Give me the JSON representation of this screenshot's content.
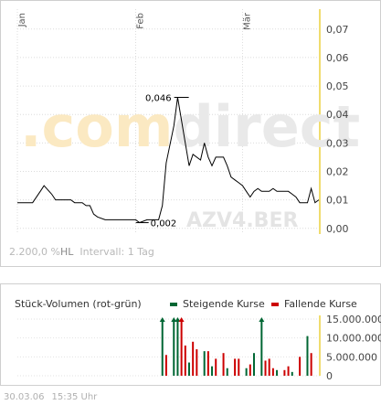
{
  "watermark": {
    "text_light": ".com",
    "text_dark": "direct",
    "symbol": "AZV4.BER"
  },
  "info": {
    "range": "2.200,0",
    "unit": "%",
    "hl": "HL",
    "interval": "Intervall: 1 Tag"
  },
  "footer": {
    "date": "30.03.06",
    "time": "15:35 Uhr"
  },
  "colors": {
    "up": "#006633",
    "down": "#cc0000",
    "highlight": "#f0dc6e",
    "line": "#000000"
  },
  "chart_data": [
    {
      "type": "line",
      "title": "",
      "month_labels": [
        {
          "label": "Jan",
          "day": 1
        },
        {
          "label": "Feb",
          "day": 32
        },
        {
          "label": "Mär",
          "day": 60
        }
      ],
      "ylim": [
        -0.002,
        0.077
      ],
      "yticks": [
        "0,00",
        "0,01",
        "0,02",
        "0,03",
        "0,04",
        "0,05",
        "0,06",
        "0,07"
      ],
      "yticks_values": [
        0,
        0.01,
        0.02,
        0.03,
        0.04,
        0.05,
        0.06,
        0.07
      ],
      "annotations": [
        {
          "label": "0,046",
          "day": 44,
          "value": 0.046
        },
        {
          "label": "0,002",
          "day": 33,
          "value": 0.002
        }
      ],
      "series": [
        {
          "values": [
            [
              1,
              0.009
            ],
            [
              3,
              0.009
            ],
            [
              5,
              0.009
            ],
            [
              7,
              0.013
            ],
            [
              8,
              0.015
            ],
            [
              10,
              0.012
            ],
            [
              11,
              0.01
            ],
            [
              13,
              0.01
            ],
            [
              15,
              0.01
            ],
            [
              16,
              0.009
            ],
            [
              18,
              0.009
            ],
            [
              19,
              0.008
            ],
            [
              20,
              0.008
            ],
            [
              21,
              0.005
            ],
            [
              22,
              0.004
            ],
            [
              24,
              0.003
            ],
            [
              26,
              0.003
            ],
            [
              28,
              0.003
            ],
            [
              30,
              0.003
            ],
            [
              32,
              0.003
            ],
            [
              33,
              0.002
            ],
            [
              35,
              0.003
            ],
            [
              37,
              0.003
            ],
            [
              38,
              0.003
            ],
            [
              39,
              0.008
            ],
            [
              40,
              0.023
            ],
            [
              42,
              0.036
            ],
            [
              43,
              0.046
            ],
            [
              44,
              0.038
            ],
            [
              45,
              0.03
            ],
            [
              46,
              0.022
            ],
            [
              47,
              0.026
            ],
            [
              49,
              0.024
            ],
            [
              50,
              0.03
            ],
            [
              51,
              0.025
            ],
            [
              52,
              0.022
            ],
            [
              53,
              0.025
            ],
            [
              55,
              0.025
            ],
            [
              56,
              0.022
            ],
            [
              57,
              0.018
            ],
            [
              58,
              0.017
            ],
            [
              59,
              0.016
            ],
            [
              60,
              0.015
            ],
            [
              61,
              0.013
            ],
            [
              62,
              0.011
            ],
            [
              63,
              0.013
            ],
            [
              64,
              0.014
            ],
            [
              65,
              0.013
            ],
            [
              67,
              0.013
            ],
            [
              68,
              0.014
            ],
            [
              69,
              0.013
            ],
            [
              71,
              0.013
            ],
            [
              72,
              0.013
            ],
            [
              73,
              0.012
            ],
            [
              74,
              0.011
            ],
            [
              75,
              0.009
            ],
            [
              77,
              0.009
            ],
            [
              78,
              0.014
            ],
            [
              79,
              0.009
            ],
            [
              80,
              0.01
            ]
          ]
        }
      ]
    },
    {
      "type": "bar",
      "title": "Stück-Volumen (rot-grün)",
      "legend": [
        "Steigende Kurse",
        "Fallende Kurse"
      ],
      "ylim": [
        0,
        15000000
      ],
      "yticks": [
        "0",
        "5.000.000",
        "10.000.000",
        "15.000.000"
      ],
      "yticks_values": [
        0,
        5000000,
        10000000,
        15000000
      ],
      "bars": [
        {
          "day": 39,
          "value": 15000000,
          "dir": "up"
        },
        {
          "day": 40,
          "value": 5500000,
          "dir": "down"
        },
        {
          "day": 42,
          "value": 15000000,
          "dir": "up"
        },
        {
          "day": 43,
          "value": 15000000,
          "dir": "up"
        },
        {
          "day": 44,
          "value": 15000000,
          "dir": "down"
        },
        {
          "day": 45,
          "value": 8000000,
          "dir": "down"
        },
        {
          "day": 46,
          "value": 3500000,
          "dir": "up"
        },
        {
          "day": 47,
          "value": 9000000,
          "dir": "down"
        },
        {
          "day": 48,
          "value": 7000000,
          "dir": "down"
        },
        {
          "day": 50,
          "value": 6500000,
          "dir": "up"
        },
        {
          "day": 51,
          "value": 6500000,
          "dir": "down"
        },
        {
          "day": 52,
          "value": 2500000,
          "dir": "up"
        },
        {
          "day": 53,
          "value": 4500000,
          "dir": "down"
        },
        {
          "day": 55,
          "value": 6000000,
          "dir": "down"
        },
        {
          "day": 56,
          "value": 2000000,
          "dir": "up"
        },
        {
          "day": 58,
          "value": 4500000,
          "dir": "down"
        },
        {
          "day": 59,
          "value": 4500000,
          "dir": "down"
        },
        {
          "day": 61,
          "value": 2000000,
          "dir": "up"
        },
        {
          "day": 62,
          "value": 3000000,
          "dir": "down"
        },
        {
          "day": 63,
          "value": 6000000,
          "dir": "up"
        },
        {
          "day": 65,
          "value": 15000000,
          "dir": "up"
        },
        {
          "day": 66,
          "value": 4000000,
          "dir": "down"
        },
        {
          "day": 67,
          "value": 4500000,
          "dir": "down"
        },
        {
          "day": 68,
          "value": 2000000,
          "dir": "down"
        },
        {
          "day": 69,
          "value": 1500000,
          "dir": "up"
        },
        {
          "day": 71,
          "value": 1500000,
          "dir": "down"
        },
        {
          "day": 72,
          "value": 2500000,
          "dir": "down"
        },
        {
          "day": 73,
          "value": 1000000,
          "dir": "up"
        },
        {
          "day": 75,
          "value": 5000000,
          "dir": "down"
        },
        {
          "day": 77,
          "value": 10500000,
          "dir": "up"
        },
        {
          "day": 78,
          "value": 6000000,
          "dir": "down"
        }
      ]
    }
  ]
}
